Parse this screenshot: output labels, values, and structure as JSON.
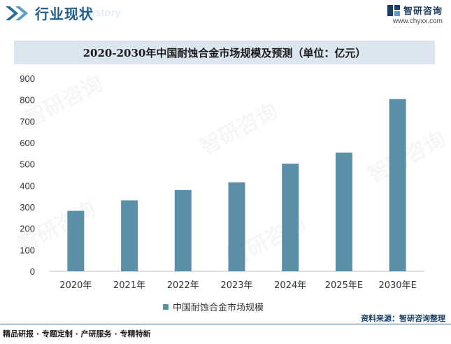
{
  "header": {
    "title": "行业现状",
    "ghost_text": "ent history",
    "brand_name": "智研咨询",
    "brand_url": "www.chyxx.com"
  },
  "chart_data": {
    "type": "bar",
    "title": "2020-2030年中国耐蚀合金市场规模及预测（单位：亿元）",
    "categories": [
      "2020年",
      "2021年",
      "2022年",
      "2023年",
      "2024年",
      "2025年E",
      "2030年E"
    ],
    "series": [
      {
        "name": "中国耐蚀合金市场规模",
        "values": [
          282,
          331,
          379,
          415,
          502,
          553,
          803
        ]
      }
    ],
    "ylim": [
      0,
      900
    ],
    "yticks": [
      "0",
      "100",
      "200",
      "300",
      "400",
      "500",
      "600",
      "700",
      "800",
      "900"
    ],
    "xlabel": "",
    "ylabel": "",
    "grid": false,
    "legend": "bottom-center",
    "bar_color": "#5b8fa8"
  },
  "watermark": "智研咨询",
  "footer": {
    "left": "精品研报 · 专题定制 · 产研服务 · 专精特新",
    "source": "资料来源：智研咨询整理"
  }
}
